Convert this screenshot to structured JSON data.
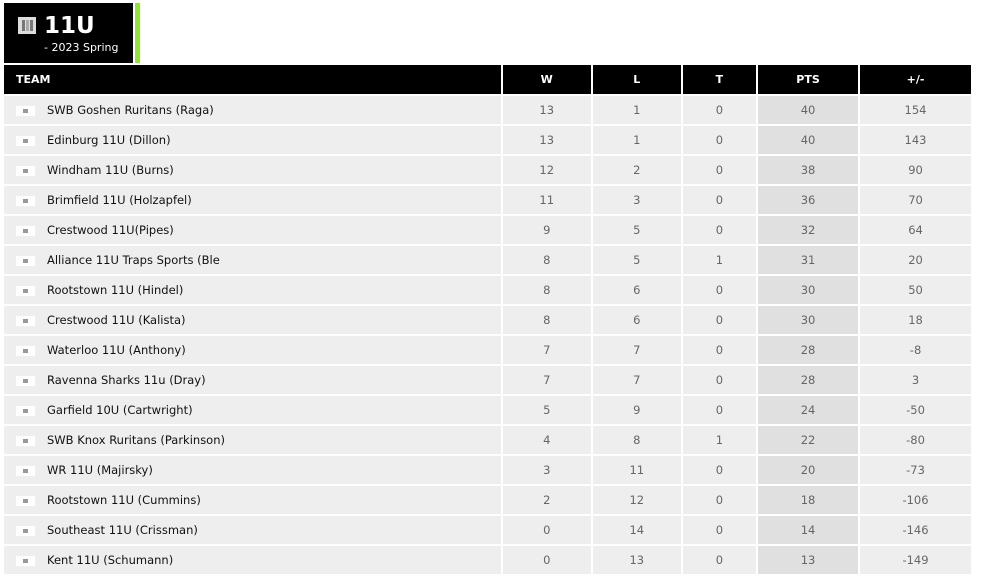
{
  "header": {
    "title": "11U",
    "subtitle": "- 2023 Spring",
    "accent": "#8ee62e"
  },
  "columns": [
    "TEAM",
    "W",
    "L",
    "T",
    "PTS",
    "+/-"
  ],
  "rows": [
    {
      "team": "SWB Goshen Ruritans (Raga)",
      "w": "13",
      "l": "1",
      "t": "0",
      "pts": "40",
      "diff": "154"
    },
    {
      "team": "Edinburg 11U (Dillon)",
      "w": "13",
      "l": "1",
      "t": "0",
      "pts": "40",
      "diff": "143"
    },
    {
      "team": "Windham 11U (Burns)",
      "w": "12",
      "l": "2",
      "t": "0",
      "pts": "38",
      "diff": "90"
    },
    {
      "team": "Brimfield 11U (Holzapfel)",
      "w": "11",
      "l": "3",
      "t": "0",
      "pts": "36",
      "diff": "70"
    },
    {
      "team": "Crestwood 11U(Pipes)",
      "w": "9",
      "l": "5",
      "t": "0",
      "pts": "32",
      "diff": "64"
    },
    {
      "team": "Alliance 11U Traps Sports (Ble",
      "w": "8",
      "l": "5",
      "t": "1",
      "pts": "31",
      "diff": "20"
    },
    {
      "team": "Rootstown 11U (Hindel)",
      "w": "8",
      "l": "6",
      "t": "0",
      "pts": "30",
      "diff": "50"
    },
    {
      "team": "Crestwood 11U (Kalista)",
      "w": "8",
      "l": "6",
      "t": "0",
      "pts": "30",
      "diff": "18"
    },
    {
      "team": "Waterloo 11U (Anthony)",
      "w": "7",
      "l": "7",
      "t": "0",
      "pts": "28",
      "diff": "-8"
    },
    {
      "team": "Ravenna Sharks 11u (Dray)",
      "w": "7",
      "l": "7",
      "t": "0",
      "pts": "28",
      "diff": "3"
    },
    {
      "team": "Garfield 10U (Cartwright)",
      "w": "5",
      "l": "9",
      "t": "0",
      "pts": "24",
      "diff": "-50"
    },
    {
      "team": "SWB Knox Ruritans (Parkinson)",
      "w": "4",
      "l": "8",
      "t": "1",
      "pts": "22",
      "diff": "-80"
    },
    {
      "team": "WR 11U (Majirsky)",
      "w": "3",
      "l": "11",
      "t": "0",
      "pts": "20",
      "diff": "-73"
    },
    {
      "team": "Rootstown 11U (Cummins)",
      "w": "2",
      "l": "12",
      "t": "0",
      "pts": "18",
      "diff": "-106"
    },
    {
      "team": "Southeast 11U (Crissman)",
      "w": "0",
      "l": "14",
      "t": "0",
      "pts": "14",
      "diff": "-146"
    },
    {
      "team": "Kent 11U (Schumann)",
      "w": "0",
      "l": "13",
      "t": "0",
      "pts": "13",
      "diff": "-149"
    }
  ]
}
